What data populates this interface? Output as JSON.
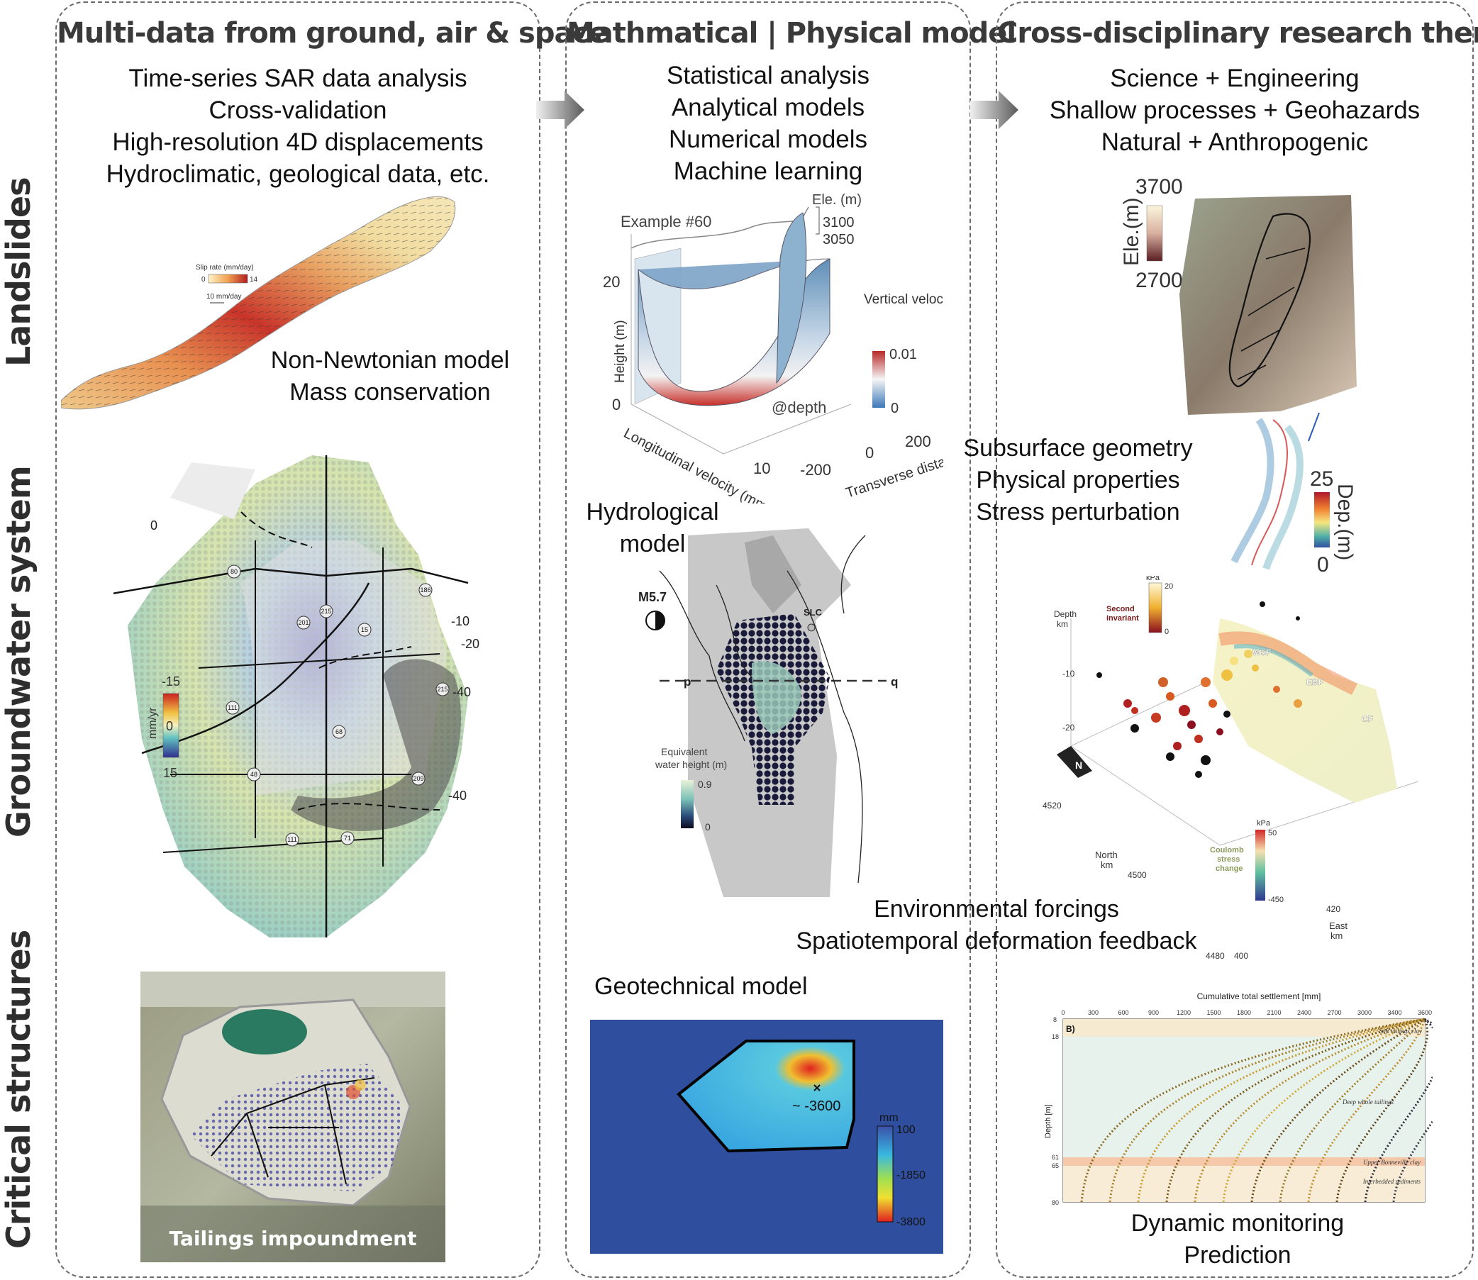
{
  "columns": [
    {
      "title": "Multi-data from ground, air & space",
      "lines": [
        "Time-series SAR data analysis",
        "Cross-validation",
        "High-resolution 4D displacements",
        "Hydroclimatic, geological data, etc."
      ]
    },
    {
      "title": "Mathmatical | Physical model",
      "lines": [
        "Statistical analysis",
        "Analytical models",
        "Numerical models",
        "Machine learning"
      ]
    },
    {
      "title": "Cross-disciplinary research themes",
      "lines": [
        "Science + Engineering",
        "Shallow processes + Geohazards",
        "Natural + Anthropogenic"
      ]
    }
  ],
  "rows": {
    "landslides": "Landslides",
    "groundwater": "Groundwater system",
    "structures": "Critical structures"
  },
  "landslide_map": {
    "legend_title": "Slip rate (mm/day)",
    "legend_min": "0",
    "legend_max": "14",
    "scale_text": "10 mm/day",
    "model_lines": [
      "Non-Newtonian model",
      "Mass conservation"
    ]
  },
  "velocity_model": {
    "example": "Example #60",
    "ele_label": "Ele. (m)",
    "ele_top": "3100",
    "ele_bottom": "3050",
    "z_max": "20",
    "z_min": "0",
    "z_label": "Height (m)",
    "cbar_title": "Vertical velocity gradient",
    "cbar_max": "0.01",
    "cbar_min": "0",
    "depth_note": "@depth",
    "x_label": "Longitudinal velocity (mm/day)",
    "x_tick": "10",
    "y_label": "Transverse distance (m)",
    "y_ticks": [
      "-200",
      "0",
      "200"
    ]
  },
  "terrain": {
    "ele_label": "Ele.(m)",
    "ele_max": "3700",
    "ele_min": "2700",
    "lines": [
      "Subsurface geometry",
      "Physical properties",
      "Stress perturbation"
    ],
    "dep_label": "Dep.(m)",
    "dep_max": "25",
    "dep_min": "0"
  },
  "groundwater_map": {
    "cbar_label": "mm/yr",
    "cbar_top": "-15",
    "cbar_mid": "0",
    "cbar_bottom": "15",
    "contours": [
      "0",
      "-10",
      "-20",
      "-40",
      "-40"
    ],
    "routes": [
      "80",
      "215",
      "186",
      "201",
      "15",
      "111",
      "68",
      "215",
      "48",
      "209",
      "111",
      "71"
    ]
  },
  "hydro_model": {
    "title_lines": [
      "Hydrological",
      "model"
    ],
    "eq_label": "M5.7",
    "city": "SLC",
    "p": "p",
    "q": "q",
    "cbar_title": "Equivalent water height (m)",
    "cbar_max": "0.9",
    "cbar_min": "0"
  },
  "quake_plot": {
    "depth_label": "Depth km",
    "depth_ticks": [
      "-10",
      "-20"
    ],
    "si_label": "Second invariant",
    "kpa_top": "kPa",
    "kpa_top_max": "20",
    "kpa_top_min": "0",
    "faults": [
      "WSF",
      "EBF",
      "CF"
    ],
    "north_label": "North km",
    "north_ticks": [
      "4520",
      "4500",
      "4480"
    ],
    "east_label": "East km",
    "east_ticks": [
      "400",
      "420"
    ],
    "cs_label": "Coulomb stress change",
    "kpa_bottom": "kPa",
    "kpa_bottom_max": "50",
    "kpa_bottom_min": "-450",
    "north_arrow": "N",
    "lines": [
      "Environmental forcings",
      "Spatiotemporal deformation feedback"
    ]
  },
  "tailings": {
    "caption": "Tailings impoundment"
  },
  "geotech": {
    "title": "Geotechnical model",
    "peak": "~ -3600",
    "cbar_unit": "mm",
    "cbar_ticks": [
      "100",
      "-1850",
      "-3800"
    ]
  },
  "settlement": {
    "title": "Cumulative total settlement [mm]",
    "x_ticks": [
      "0",
      "300",
      "600",
      "900",
      "1200",
      "1500",
      "1800",
      "2100",
      "2400",
      "2700",
      "3000",
      "3400",
      "3600"
    ],
    "panel_tag": "B)",
    "y_label": "Depth [m]",
    "y_ticks": [
      "8",
      "18",
      "61",
      "65",
      "80"
    ],
    "layers": [
      "Soft tailings clay",
      "Deep whole tailings",
      "Upper Bonneville clay",
      "Interbedded sediments"
    ],
    "lines": [
      "Dynamic monitoring",
      "Prediction"
    ]
  },
  "colors": {
    "panel_border": "#6b6b6b",
    "geotech_bg": "#2f4f9e",
    "arrow": "#8a8a8a"
  }
}
